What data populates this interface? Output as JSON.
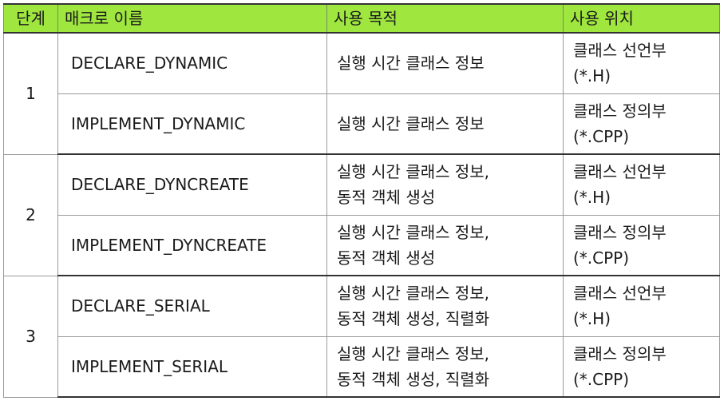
{
  "headers": {
    "step": "단계",
    "macro": "매크로 이름",
    "purpose": "사용 목적",
    "location": "사용 위치"
  },
  "groups": [
    {
      "step": "1",
      "rows": [
        {
          "macro": "DECLARE_DYNAMIC",
          "purpose_lines": [
            "실행 시간 클래스 정보"
          ],
          "location_lines": [
            "클래스 선언부",
            "(*.H)"
          ]
        },
        {
          "macro": "IMPLEMENT_DYNAMIC",
          "purpose_lines": [
            "실행 시간 클래스 정보"
          ],
          "location_lines": [
            "클래스 정의부",
            "(*.CPP)"
          ]
        }
      ]
    },
    {
      "step": "2",
      "rows": [
        {
          "macro": "DECLARE_DYNCREATE",
          "purpose_lines": [
            "실행 시간 클래스 정보,",
            "동적 객체 생성"
          ],
          "location_lines": [
            "클래스 선언부",
            "(*.H)"
          ]
        },
        {
          "macro": "IMPLEMENT_DYNCREATE",
          "purpose_lines": [
            "실행 시간 클래스 정보,",
            "동적 객체 생성"
          ],
          "location_lines": [
            "클래스 정의부",
            "(*.CPP)"
          ]
        }
      ]
    },
    {
      "step": "3",
      "rows": [
        {
          "macro": "DECLARE_SERIAL",
          "purpose_lines": [
            "실행 시간 클래스 정보,",
            "동적 객체 생성, 직렬화"
          ],
          "location_lines": [
            "클래스 선언부",
            "(*.H)"
          ]
        },
        {
          "macro": "IMPLEMENT_SERIAL",
          "purpose_lines": [
            "실행 시간 클래스 정보,",
            "동적 객체 생성, 직렬화"
          ],
          "location_lines": [
            "클래스 정의부",
            "(*.CPP)"
          ]
        }
      ]
    }
  ]
}
